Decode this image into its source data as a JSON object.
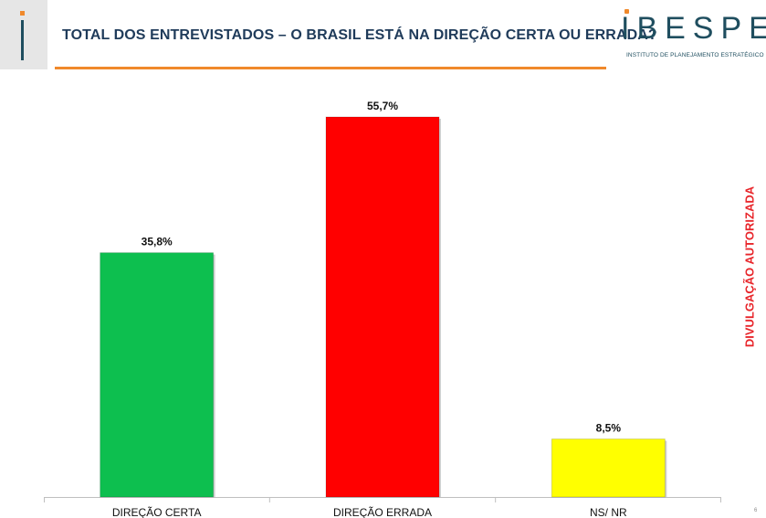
{
  "header": {
    "title": "TOTAL DOS ENTREVISTADOS – O BRASIL ESTÁ NA DIREÇÃO CERTA OU ERRADA?"
  },
  "logo": {
    "name": "IBESPE",
    "tagline": "INSTITUTO DE PLANEJAMENTO ESTRATÉGICO"
  },
  "side_note": "DIVULGAÇÃO AUTORIZADA",
  "corner_number": "6",
  "colors": {
    "title": "#1f3b5a",
    "accent": "#f0892b",
    "logo": "#1f4e5f",
    "side_note": "#e8262b"
  },
  "chart_data": {
    "type": "bar",
    "categories": [
      "DIREÇÃO CERTA",
      "DIREÇÃO ERRADA",
      "NS/ NR"
    ],
    "values": [
      35.8,
      55.7,
      8.5
    ],
    "value_labels": [
      "35,8%",
      "55,7%",
      "8,5%"
    ],
    "colors": [
      "#0dbf4f",
      "#ff0000",
      "#ffff00"
    ],
    "title": "",
    "xlabel": "",
    "ylabel": "",
    "ylim": [
      0,
      60
    ],
    "grid": false,
    "legend": "none"
  }
}
